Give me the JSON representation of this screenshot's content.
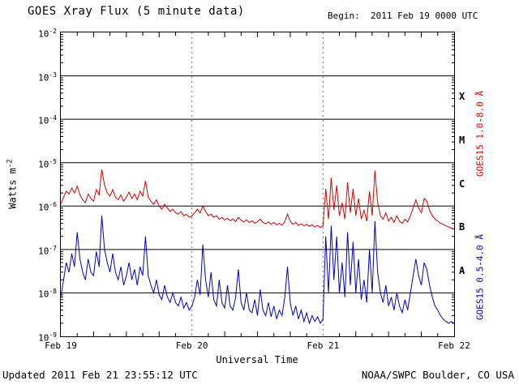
{
  "header": {
    "title": "GOES Xray Flux (5 minute data)",
    "begin_label": "Begin:  2011 Feb 19 0000 UTC"
  },
  "footer": {
    "updated": "Updated 2011 Feb 21 23:55:12 UTC",
    "credit": "NOAA/SWPC Boulder, CO USA"
  },
  "axes": {
    "ylabel_base": "Watts m",
    "ylabel_exp": "-2",
    "xlabel": "Universal Time"
  },
  "chart_data": {
    "type": "line",
    "title": "GOES Xray Flux (5 minute data)",
    "begin": "2011 Feb 19 0000 UTC",
    "updated": "2011 Feb 21 23:55:12 UTC",
    "xlabel": "Universal Time",
    "ylabel": "Watts m^-2",
    "y_scale": "log",
    "y_log_range": [
      -9,
      -2
    ],
    "x_unit": "hours since 2011 Feb 19 00:00 UTC",
    "x_range": [
      0,
      72
    ],
    "x_ticks": [
      {
        "hour": 0,
        "label": "Feb 19"
      },
      {
        "hour": 24,
        "label": "Feb 20"
      },
      {
        "hour": 48,
        "label": "Feb 21"
      },
      {
        "hour": 72,
        "label": "Feb 22"
      }
    ],
    "y_tick_exponents": [
      -2,
      -3,
      -4,
      -5,
      -6,
      -7,
      -8,
      -9
    ],
    "flare_classes": [
      {
        "label": "X",
        "log_center": -3.5
      },
      {
        "label": "M",
        "log_center": -4.5
      },
      {
        "label": "C",
        "log_center": -5.5
      },
      {
        "label": "B",
        "log_center": -6.5
      },
      {
        "label": "A",
        "log_center": -7.5
      }
    ],
    "grid": {
      "horizontal": "solid lines at each decade",
      "vertical": "dotted lines at day boundaries"
    },
    "legend_position": "right-rotated",
    "series": [
      {
        "key": "long",
        "name": "GOES15 1.0-8.0 Å",
        "color": "#dd0000",
        "x_start_hour": 0,
        "x_step_hour": 0.5,
        "values": [
          1.1e-06,
          1.6e-06,
          2.2e-06,
          1.9e-06,
          2.6e-06,
          2e-06,
          2.9e-06,
          1.8e-06,
          1.4e-06,
          1.2e-06,
          1.9e-06,
          1.5e-06,
          1.3e-06,
          2.4e-06,
          1.8e-06,
          7e-06,
          3e-06,
          2e-06,
          1.7e-06,
          2.4e-06,
          1.6e-06,
          1.4e-06,
          1.8e-06,
          1.3e-06,
          1.6e-06,
          2.1e-06,
          1.5e-06,
          1.9e-06,
          1.4e-06,
          2.2e-06,
          1.7e-06,
          3.8e-06,
          1.6e-06,
          1.3e-06,
          1.1e-06,
          1.4e-06,
          1e-06,
          8.5e-07,
          1.1e-06,
          9e-07,
          7.5e-07,
          8.5e-07,
          7e-07,
          6.5e-07,
          7.5e-07,
          6e-07,
          6.5e-07,
          5.5e-07,
          6e-07,
          7e-07,
          8.5e-07,
          7e-07,
          1e-06,
          7.5e-07,
          6e-07,
          6.5e-07,
          5.5e-07,
          6e-07,
          5e-07,
          5.5e-07,
          4.8e-07,
          5.2e-07,
          4.6e-07,
          5e-07,
          4.4e-07,
          5.5e-07,
          4.7e-07,
          4.3e-07,
          4.8e-07,
          4.2e-07,
          4.6e-07,
          4e-07,
          4.4e-07,
          5e-07,
          4.2e-07,
          3.9e-07,
          4.3e-07,
          3.8e-07,
          4.2e-07,
          3.7e-07,
          4e-07,
          3.6e-07,
          4.4e-07,
          6.5e-07,
          4.5e-07,
          3.8e-07,
          4.2e-07,
          3.6e-07,
          3.9e-07,
          3.5e-07,
          3.8e-07,
          3.4e-07,
          3.7e-07,
          3.3e-07,
          3.6e-07,
          3.2e-07,
          3.5e-07,
          2.5e-06,
          5e-07,
          4.5e-06,
          8e-07,
          3e-06,
          6e-07,
          1.2e-06,
          5e-07,
          3.5e-06,
          7e-07,
          2.5e-06,
          6e-07,
          1.5e-06,
          5e-07,
          8e-07,
          4.5e-07,
          2.2e-06,
          6e-07,
          6.5e-06,
          1.2e-06,
          6e-07,
          5e-07,
          7e-07,
          4.5e-07,
          5.5e-07,
          4.2e-07,
          6e-07,
          4.5e-07,
          4e-07,
          5e-07,
          4.3e-07,
          6e-07,
          9e-07,
          1.4e-06,
          9e-07,
          7e-07,
          1.5e-06,
          1.3e-06,
          8e-07,
          6e-07,
          5e-07,
          4.5e-07,
          4e-07,
          3.8e-07,
          3.5e-07,
          3.3e-07,
          3.1e-07,
          3e-07
        ]
      },
      {
        "key": "short",
        "name": "GOES15 0.5-4.0 Å",
        "color": "#0000cc",
        "x_start_hour": 0,
        "x_step_hour": 0.5,
        "values": [
          8e-09,
          2e-08,
          5e-08,
          3e-08,
          8e-08,
          4e-08,
          2.5e-07,
          6e-08,
          3e-08,
          2e-08,
          6e-08,
          3e-08,
          2.5e-08,
          9e-08,
          4e-08,
          6e-07,
          1e-07,
          5e-08,
          3e-08,
          8e-08,
          3e-08,
          2e-08,
          4e-08,
          1.5e-08,
          2.5e-08,
          5e-08,
          2e-08,
          3.5e-08,
          1.5e-08,
          4e-08,
          2.5e-08,
          2e-07,
          2.5e-08,
          1.5e-08,
          1e-08,
          2e-08,
          9e-09,
          7e-09,
          1.5e-08,
          8e-09,
          6e-09,
          1e-08,
          6e-09,
          5e-09,
          8e-09,
          4.5e-09,
          6e-09,
          4e-09,
          5e-09,
          8e-09,
          2e-08,
          9e-09,
          1.3e-07,
          2e-08,
          8e-09,
          3e-08,
          7e-09,
          5e-09,
          2e-08,
          6e-09,
          4.5e-09,
          1.5e-08,
          5e-09,
          4e-09,
          8e-09,
          3.5e-08,
          6e-09,
          4e-09,
          1e-08,
          4e-09,
          3.5e-09,
          7e-09,
          3e-09,
          1.2e-08,
          4e-09,
          3e-09,
          6e-09,
          2.8e-09,
          5e-09,
          2.5e-09,
          4e-09,
          3e-09,
          8e-09,
          4e-08,
          6e-09,
          3e-09,
          5e-09,
          2.5e-09,
          4e-09,
          2.2e-09,
          3.5e-09,
          2e-09,
          3e-09,
          2.2e-09,
          2.8e-09,
          2e-09,
          2.5e-09,
          2e-07,
          1e-08,
          3.5e-07,
          2e-08,
          2e-07,
          1e-08,
          5e-08,
          8e-09,
          2.5e-07,
          1.5e-08,
          1.5e-07,
          1e-08,
          6e-08,
          7e-09,
          2e-08,
          6e-09,
          1e-07,
          1e-08,
          4.5e-07,
          3e-08,
          1e-08,
          6e-09,
          1.5e-08,
          5e-09,
          8e-09,
          4e-09,
          1e-08,
          5e-09,
          3.5e-09,
          7e-09,
          4e-09,
          1e-08,
          2.5e-08,
          6e-08,
          2.5e-08,
          1.5e-08,
          5e-08,
          3.5e-08,
          1.5e-08,
          8e-09,
          5e-09,
          4e-09,
          3e-09,
          2.5e-09,
          2.2e-09,
          2e-09,
          2.2e-09,
          2e-09
        ]
      }
    ]
  },
  "colors": {
    "long": "#dd0000",
    "short": "#0000cc",
    "axis": "#000000",
    "dotted_grid": "#777777"
  }
}
